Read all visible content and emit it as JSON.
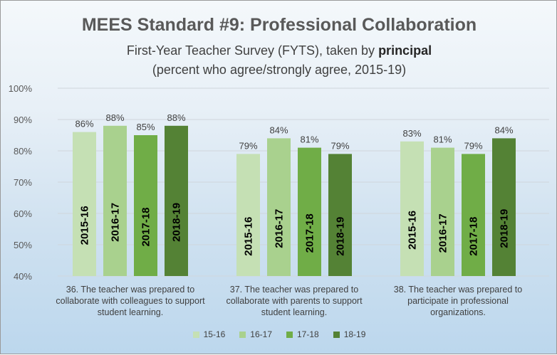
{
  "chart_data": {
    "type": "bar",
    "title": "MEES Standard #9: Professional Collaboration",
    "subtitle_prefix": "First-Year Teacher Survey (FYTS), taken by ",
    "subtitle_bold": "principal",
    "subtitle_line2": "(percent who agree/strongly agree, 2015-19)",
    "ylim": [
      40,
      100
    ],
    "yticks": [
      "40%",
      "50%",
      "60%",
      "70%",
      "80%",
      "90%",
      "100%"
    ],
    "ytick_values": [
      40,
      50,
      60,
      70,
      80,
      90,
      100
    ],
    "categories": [
      [
        "36. The teacher was prepared to",
        "collaborate with colleagues to support",
        "student learning."
      ],
      [
        "37. The teacher was prepared to",
        "collaborate with parents to support",
        "student learning."
      ],
      [
        "38. The teacher was prepared to",
        "participate in professional",
        "organizations."
      ]
    ],
    "series": [
      {
        "name": "15-16",
        "bar_label": "2015-16",
        "color": "#c5e0b4",
        "values": [
          86,
          79,
          83
        ]
      },
      {
        "name": "16-17",
        "bar_label": "2016-17",
        "color": "#a9d18e",
        "values": [
          88,
          84,
          81
        ]
      },
      {
        "name": "17-18",
        "bar_label": "2017-18",
        "color": "#70ad47",
        "values": [
          85,
          81,
          79
        ]
      },
      {
        "name": "18-19",
        "bar_label": "2018-19",
        "color": "#548235",
        "values": [
          88,
          79,
          84
        ]
      }
    ],
    "value_suffix": "%",
    "legend": "bottom",
    "grid": true
  }
}
